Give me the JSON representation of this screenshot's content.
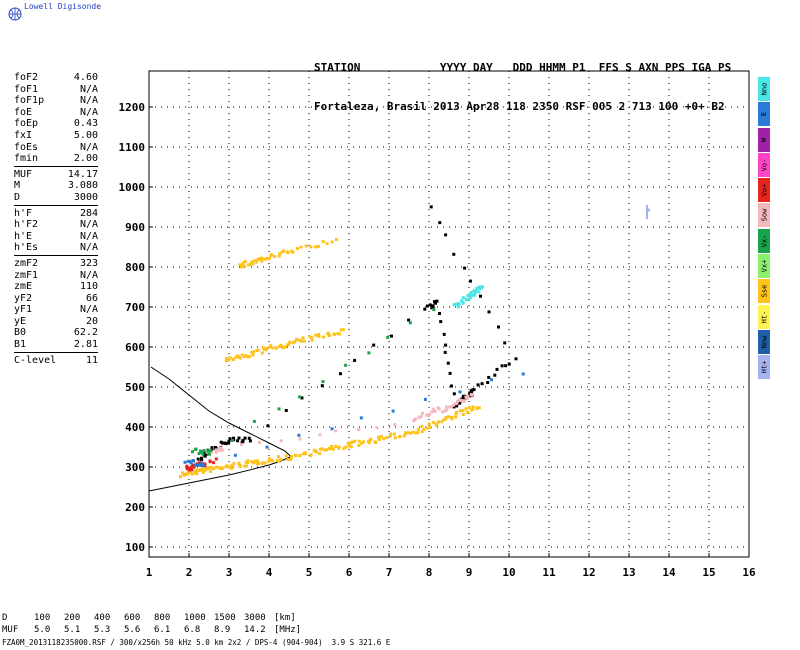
{
  "app": {
    "title": "Lowell Digisonde"
  },
  "header": {
    "line1": "STATION            YYYY DAY   DDD HHMM P1  FFS S AXN PPS IGA PS",
    "line2": "Fortaleza, Brasil 2013 Apr28 118 2350 RSF 005 2 713 100 +0+ B2"
  },
  "params": {
    "group1": [
      {
        "label": "foF2",
        "value": "4.60"
      },
      {
        "label": "foF1",
        "value": "N/A"
      },
      {
        "label": "foF1p",
        "value": "N/A"
      },
      {
        "label": "foE",
        "value": "N/A"
      },
      {
        "label": "foEp",
        "value": "0.43"
      },
      {
        "label": "fxI",
        "value": "5.00"
      },
      {
        "label": "foEs",
        "value": "N/A"
      },
      {
        "label": "fmin",
        "value": "2.00"
      }
    ],
    "group2": [
      {
        "label": "MUF",
        "value": "14.17"
      },
      {
        "label": "M",
        "value": "3.080"
      },
      {
        "label": "D",
        "value": "3000"
      }
    ],
    "group3": [
      {
        "label": "h'F",
        "value": "284"
      },
      {
        "label": "h'F2",
        "value": "N/A"
      },
      {
        "label": "h'E",
        "value": "N/A"
      },
      {
        "label": "h'Es",
        "value": "N/A"
      }
    ],
    "group4": [
      {
        "label": "zmF2",
        "value": "323"
      },
      {
        "label": "zmF1",
        "value": "N/A"
      },
      {
        "label": "zmE",
        "value": "110"
      },
      {
        "label": "yF2",
        "value": "66"
      },
      {
        "label": "yF1",
        "value": "N/A"
      },
      {
        "label": "yE",
        "value": "20"
      },
      {
        "label": "B0",
        "value": "62.2"
      },
      {
        "label": "B1",
        "value": "2.81"
      }
    ],
    "group5": [
      {
        "label": "C-level",
        "value": "11"
      }
    ]
  },
  "legend": [
    {
      "label": "Nno",
      "color": "#49e6e6"
    },
    {
      "label": "E",
      "color": "#2a7bd6"
    },
    {
      "label": "W",
      "color": "#a020a8"
    },
    {
      "label": "Vo-",
      "color": "#ff44c8"
    },
    {
      "label": "Vo+",
      "color": "#e8251c"
    },
    {
      "label": "Sow",
      "color": "#f4b8bf"
    },
    {
      "label": "Vx-",
      "color": "#17a34a"
    },
    {
      "label": "Vx+",
      "color": "#8bef6a"
    },
    {
      "label": "Sse",
      "color": "#ffc21a"
    },
    {
      "label": "Ht-",
      "color": "#fff254"
    },
    {
      "label": "Nnw",
      "color": "#1e5fa8"
    },
    {
      "label": "Ht+",
      "color": "#a7b3ef"
    }
  ],
  "distance_table": {
    "d_label": "D",
    "muf_label": "MUF",
    "d_values": [
      "100",
      "200",
      "400",
      "600",
      "800",
      "1000",
      "1500",
      "3000"
    ],
    "muf_values": [
      "5.0",
      "5.1",
      "5.3",
      "5.6",
      "6.1",
      "6.8",
      "8.9",
      "14.2"
    ],
    "d_unit": "[km]",
    "muf_unit": "[MHz]"
  },
  "footer": "FZA0M_2013118235000.RSF / 300/x256h 50 kHz 5.0 km 2x2 / DPS-4 (904-904)  3.9 S 321.6 E",
  "chart_data": {
    "type": "scatter",
    "title": "",
    "xlabel": "",
    "ylabel": "",
    "xlim": [
      0.8,
      16.0
    ],
    "ylim": [
      60,
      1290
    ],
    "xticks": [
      1,
      2,
      3,
      4,
      5,
      6,
      7,
      8,
      9,
      10,
      11,
      12,
      13,
      14,
      15,
      16
    ],
    "yticks": [
      100,
      200,
      300,
      400,
      500,
      600,
      700,
      800,
      900,
      1000,
      1100,
      1200
    ],
    "grid": true,
    "profile_curve": [
      [
        1.0,
        240
      ],
      [
        1.5,
        250
      ],
      [
        2.0,
        260
      ],
      [
        2.5,
        270
      ],
      [
        3.0,
        280
      ],
      [
        3.5,
        292
      ],
      [
        4.0,
        305
      ],
      [
        4.3,
        315
      ],
      [
        4.55,
        326
      ],
      [
        4.4,
        340
      ],
      [
        4.0,
        360
      ],
      [
        3.5,
        385
      ],
      [
        3.0,
        410
      ],
      [
        2.5,
        440
      ],
      [
        2.0,
        480
      ],
      [
        1.5,
        520
      ],
      [
        1.05,
        550
      ]
    ],
    "traces": [
      {
        "name": "F2 trace",
        "color": "#ffc21a",
        "points": [
          [
            1.8,
            285
          ],
          [
            2.0,
            290
          ],
          [
            2.3,
            295
          ],
          [
            2.6,
            300
          ],
          [
            3.0,
            305
          ],
          [
            3.4,
            312
          ],
          [
            3.8,
            318
          ],
          [
            4.3,
            325
          ],
          [
            4.8,
            335
          ],
          [
            5.3,
            345
          ],
          [
            5.8,
            355
          ],
          [
            6.3,
            365
          ],
          [
            6.8,
            375
          ],
          [
            7.3,
            385
          ],
          [
            7.8,
            400
          ],
          [
            8.3,
            420
          ],
          [
            8.8,
            440
          ],
          [
            9.2,
            455
          ]
        ]
      },
      {
        "name": "F2 2nd hop",
        "color": "#ffc21a",
        "points": [
          [
            2.9,
            570
          ],
          [
            3.3,
            580
          ],
          [
            3.8,
            595
          ],
          [
            4.3,
            608
          ],
          [
            4.8,
            620
          ],
          [
            5.3,
            632
          ],
          [
            5.8,
            645
          ]
        ]
      },
      {
        "name": "F2 3rd hop",
        "color": "#ffc21a",
        "points": [
          [
            3.2,
            805
          ],
          [
            3.6,
            818
          ],
          [
            4.0,
            828
          ],
          [
            4.6,
            845
          ],
          [
            5.6,
            870
          ]
        ]
      },
      {
        "name": "upper",
        "color": "#49e6e6",
        "points": [
          [
            8.6,
            705
          ],
          [
            8.9,
            725
          ],
          [
            9.1,
            740
          ],
          [
            9.3,
            755
          ]
        ]
      },
      {
        "name": "black",
        "color": "#000000",
        "points": [
          [
            2.2,
            325
          ],
          [
            2.6,
            350
          ],
          [
            3.0,
            370
          ],
          [
            3.5,
            375
          ],
          [
            7.9,
            700
          ],
          [
            8.2,
            715
          ],
          [
            8.6,
            460
          ],
          [
            8.9,
            480
          ],
          [
            9.1,
            495
          ],
          [
            10.1,
            575
          ],
          [
            8.0,
            955
          ]
        ]
      },
      {
        "name": "pink",
        "color": "#f4b8bf",
        "points": [
          [
            2.4,
            335
          ],
          [
            2.8,
            350
          ],
          [
            7.6,
            420
          ],
          [
            8.0,
            440
          ],
          [
            8.4,
            450
          ],
          [
            8.8,
            470
          ],
          [
            9.0,
            480
          ]
        ]
      },
      {
        "name": "red",
        "color": "#e8251c",
        "points": [
          [
            1.9,
            300
          ],
          [
            2.1,
            305
          ],
          [
            2.6,
            318
          ]
        ]
      },
      {
        "name": "blue",
        "color": "#2a7bd6",
        "points": [
          [
            1.9,
            320
          ],
          [
            2.3,
            310
          ],
          [
            10.3,
            540
          ]
        ]
      },
      {
        "name": "green",
        "color": "#17a34a",
        "points": [
          [
            2.1,
            345
          ],
          [
            2.5,
            340
          ],
          [
            8.1,
            700
          ]
        ]
      },
      {
        "name": "light blue",
        "color": "#a7b3ef",
        "points": [
          [
            13.45,
            940
          ]
        ]
      }
    ]
  }
}
